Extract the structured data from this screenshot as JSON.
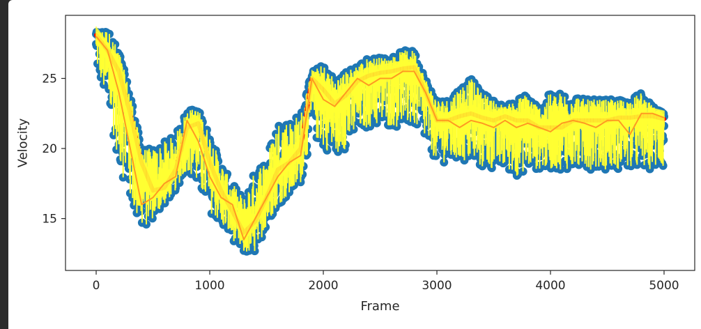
{
  "chart_data": {
    "type": "line",
    "title": "",
    "xlabel": "Frame",
    "ylabel": "Velocity",
    "xlim": [
      -270,
      5270
    ],
    "ylim": [
      11.3,
      29.5
    ],
    "xticks": [
      0,
      1000,
      2000,
      3000,
      4000,
      5000
    ],
    "xtick_labels": [
      "0",
      "1000",
      "2000",
      "3000",
      "4000",
      "5000"
    ],
    "yticks": [
      15,
      20,
      25
    ],
    "ytick_labels": [
      "15",
      "20",
      "25"
    ],
    "grid": false,
    "legend": "none",
    "colors": {
      "scatter": "#1f77b4",
      "stems": "#ffff33",
      "smooth_mean": "#ff0000",
      "rolling_mean": "#ff9922"
    },
    "anchor_x": [
      0,
      100,
      200,
      300,
      400,
      500,
      600,
      700,
      800,
      900,
      1000,
      1100,
      1200,
      1300,
      1400,
      1500,
      1600,
      1700,
      1800,
      1900,
      2000,
      2100,
      2200,
      2300,
      2400,
      2500,
      2600,
      2700,
      2800,
      2900,
      3000,
      3100,
      3200,
      3300,
      3400,
      3500,
      3600,
      3700,
      3800,
      3900,
      4000,
      4100,
      4200,
      4300,
      4400,
      4500,
      4600,
      4700,
      4800,
      4900,
      5000
    ],
    "smooth_mean": [
      28.1,
      27.0,
      25.5,
      22.5,
      19.0,
      17.0,
      17.2,
      18.5,
      21.5,
      21.8,
      19.0,
      17.0,
      15.5,
      14.0,
      14.8,
      16.5,
      18.5,
      19.0,
      20.0,
      25.0,
      24.2,
      23.2,
      23.8,
      24.8,
      25.2,
      25.4,
      25.5,
      25.7,
      25.8,
      24.0,
      22.0,
      22.0,
      22.3,
      22.5,
      22.2,
      22.0,
      22.3,
      22.0,
      22.0,
      21.5,
      21.5,
      21.5,
      22.0,
      22.0,
      22.0,
      22.0,
      22.2,
      22.2,
      22.3,
      22.3,
      22.1
    ],
    "rolling_mean": [
      28.0,
      27.0,
      24.0,
      20.0,
      16.0,
      16.5,
      17.5,
      18.0,
      22.0,
      20.5,
      18.0,
      16.5,
      16.0,
      13.5,
      15.0,
      16.5,
      18.0,
      19.0,
      19.5,
      25.0,
      23.5,
      23.0,
      24.0,
      25.0,
      24.5,
      25.0,
      25.0,
      25.5,
      25.5,
      24.0,
      22.0,
      22.0,
      21.5,
      22.0,
      21.8,
      21.5,
      22.0,
      21.5,
      21.8,
      21.5,
      21.2,
      21.8,
      22.0,
      21.8,
      21.5,
      22.0,
      22.0,
      21.0,
      22.5,
      22.5,
      22.2
    ],
    "spread_low": [
      26.0,
      23.0,
      19.0,
      16.0,
      14.0,
      15.0,
      16.0,
      17.0,
      18.5,
      17.0,
      15.5,
      14.5,
      13.5,
      12.5,
      12.5,
      14.5,
      16.0,
      16.5,
      17.5,
      21.0,
      20.0,
      19.5,
      20.0,
      21.0,
      21.5,
      21.5,
      21.5,
      21.5,
      21.5,
      20.5,
      19.0,
      19.0,
      19.0,
      19.0,
      18.5,
      18.5,
      18.5,
      18.0,
      18.5,
      18.5,
      18.5,
      18.5,
      18.5,
      18.5,
      18.5,
      18.5,
      18.5,
      18.5,
      18.5,
      18.5,
      18.5
    ],
    "spread_high": [
      28.3,
      28.5,
      27.0,
      24.0,
      20.0,
      20.0,
      20.5,
      21.0,
      22.8,
      22.8,
      21.0,
      19.0,
      17.5,
      16.5,
      18.5,
      19.5,
      22.0,
      22.0,
      22.5,
      25.5,
      26.0,
      25.0,
      25.5,
      26.0,
      26.5,
      26.5,
      26.5,
      27.0,
      27.0,
      25.0,
      23.5,
      23.5,
      24.5,
      25.0,
      24.0,
      23.5,
      23.0,
      23.5,
      24.0,
      23.0,
      24.0,
      24.0,
      24.0,
      23.5,
      23.5,
      23.5,
      23.5,
      23.5,
      24.0,
      23.0,
      22.5
    ]
  }
}
